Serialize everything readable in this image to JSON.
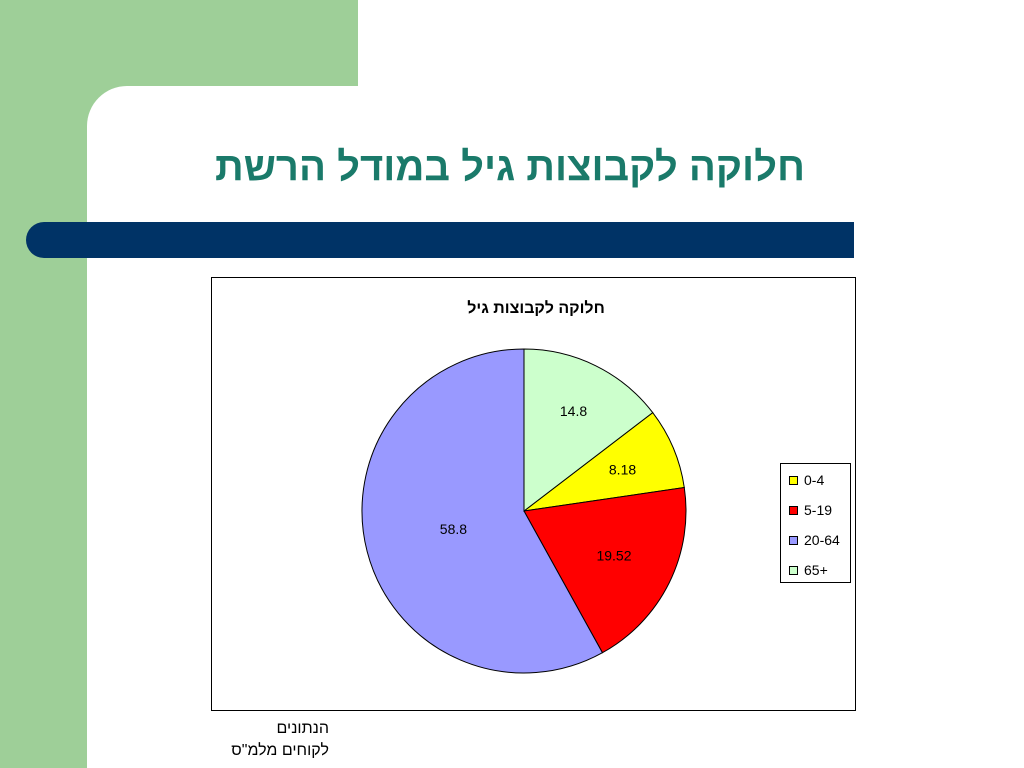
{
  "slide": {
    "title": "חלוקה לקבוצות גיל במודל הרשת",
    "footnote_line1": "הנתונים",
    "footnote_line2": "לקוחים  מלמ\"ס"
  },
  "colors": {
    "green_panel": "#9ecf98",
    "title_text": "#1a7a6a",
    "title_bar": "#003366"
  },
  "chart_data": {
    "type": "pie",
    "title": "חלוקה לקבוצות גיל",
    "categories": [
      "0-4",
      "5-19",
      "20-64",
      "65+"
    ],
    "values": [
      8.18,
      19.52,
      58.8,
      14.8
    ],
    "data_labels": [
      "8.18",
      "19.52",
      "58.8",
      "14.8"
    ],
    "colors": [
      "#ffff00",
      "#ff0000",
      "#9999ff",
      "#ccffcc"
    ],
    "legend_position": "right"
  }
}
